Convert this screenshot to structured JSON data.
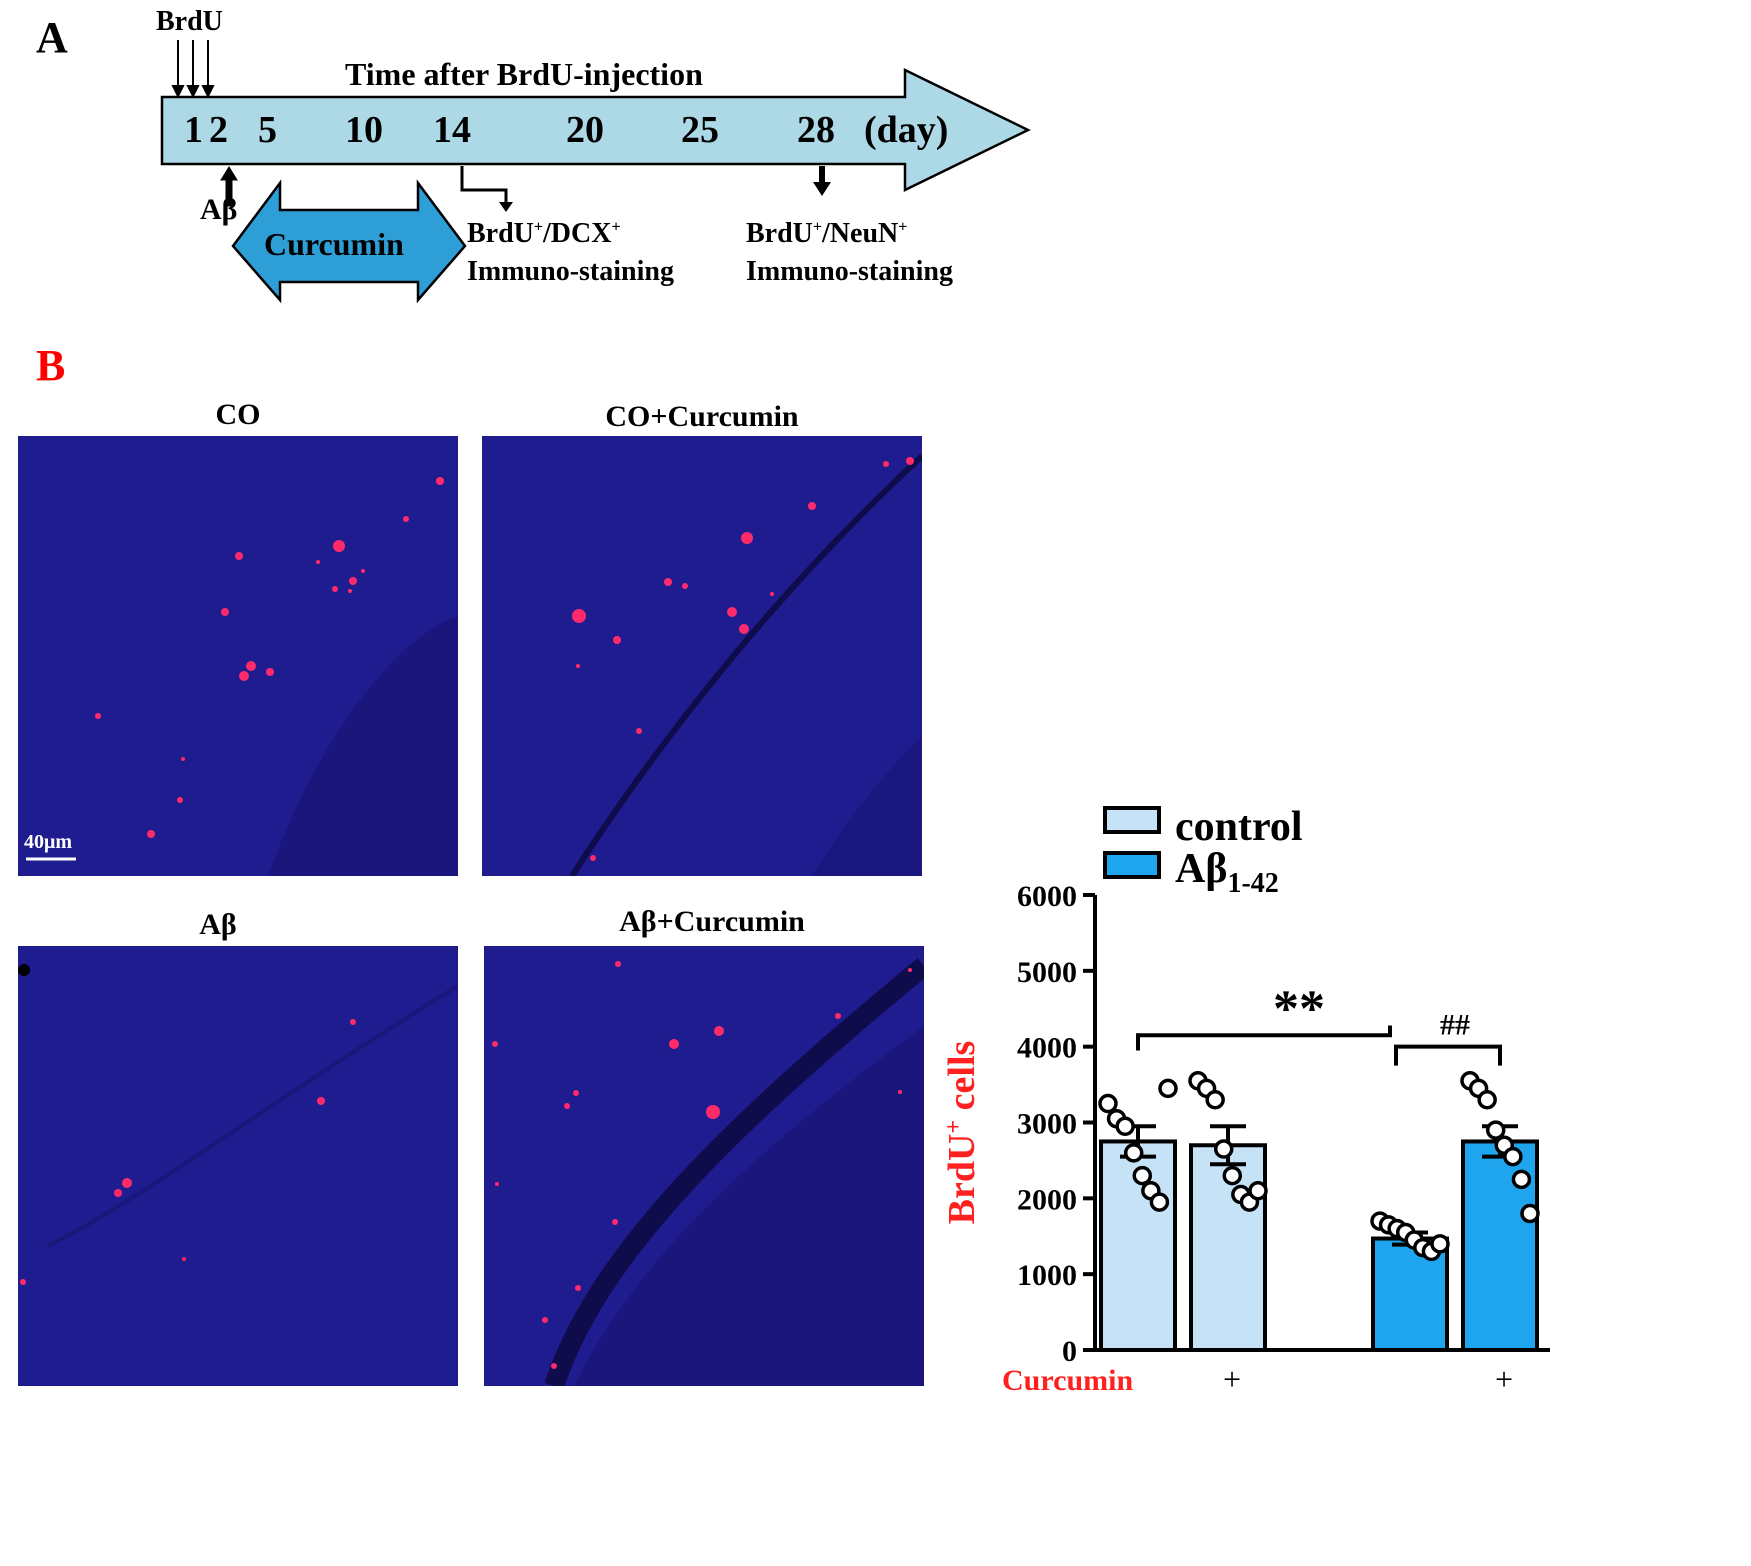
{
  "panel_a": {
    "letter": "A",
    "brdu_label": "BrdU",
    "timeline_title": "Time after BrdU-injection",
    "days": [
      "1",
      "2",
      "5",
      "10",
      "14",
      "20",
      "25",
      "28"
    ],
    "day_unit": "(day)",
    "abeta_label": "Aβ",
    "curcumin_label": "Curcumin",
    "staining_14": {
      "marker": "BrdU",
      "sup1": "+",
      "marker2": "/DCX",
      "sup2": "+",
      "line2": "Immuno-staining"
    },
    "staining_28": {
      "marker": "BrdU",
      "sup1": "+",
      "marker2": "/NeuN",
      "sup2": "+",
      "line2": "Immuno-staining"
    },
    "arrow_fill": "#add8e6",
    "curcumin_fill": "#2e9fd6"
  },
  "panel_b": {
    "letter": "B",
    "letter_color": "#ff0000",
    "images": [
      {
        "title": "CO"
      },
      {
        "title": "CO+Curcumin"
      },
      {
        "title": "Aβ"
      },
      {
        "title": "Aβ+Curcumin"
      }
    ],
    "scale_bar": "40μm",
    "image_background": "#1c1a8a",
    "cell_color": "#ff2060"
  },
  "chart_data": {
    "type": "bar",
    "ylabel": "BrdU",
    "ylabel_sup": "+",
    "ylabel_rest": " cells",
    "ylabel_color": "#ff2020",
    "ylim": [
      0,
      6000
    ],
    "yticks": [
      "0",
      "1000",
      "2000",
      "3000",
      "4000",
      "5000",
      "6000"
    ],
    "x_row_label": "Curcumin",
    "x_row_label_color": "#ff2020",
    "curcumin_marks": [
      "",
      "+",
      "",
      "+"
    ],
    "legend": [
      {
        "name": "control",
        "color": "#c6e2f7"
      },
      {
        "name_main": "Aβ",
        "name_sub": "1-42",
        "color": "#1ea5ee"
      }
    ],
    "bars": [
      {
        "group": "control",
        "curcumin": false,
        "mean": 2750,
        "sem": 200,
        "color": "#c6e2f7",
        "points": [
          3250,
          3050,
          2950,
          2600,
          2300,
          2100,
          1950,
          3450
        ]
      },
      {
        "group": "control",
        "curcumin": true,
        "mean": 2700,
        "sem": 250,
        "color": "#c6e2f7",
        "points": [
          3550,
          3450,
          3300,
          2650,
          2300,
          2050,
          1950,
          2100
        ]
      },
      {
        "group": "Aβ1-42",
        "curcumin": false,
        "mean": 1470,
        "sem": 80,
        "color": "#1ea5ee",
        "points": [
          1700,
          1650,
          1600,
          1550,
          1450,
          1350,
          1300,
          1400
        ]
      },
      {
        "group": "Aβ1-42",
        "curcumin": true,
        "mean": 2750,
        "sem": 200,
        "color": "#1ea5ee",
        "points": [
          3550,
          3450,
          3300,
          2900,
          2700,
          2550,
          2250,
          1800
        ]
      }
    ],
    "significance": [
      {
        "label": "**",
        "from_bar": 0,
        "to_bar": 2
      },
      {
        "label": "##",
        "from_bar": 2,
        "to_bar": 3
      }
    ]
  }
}
